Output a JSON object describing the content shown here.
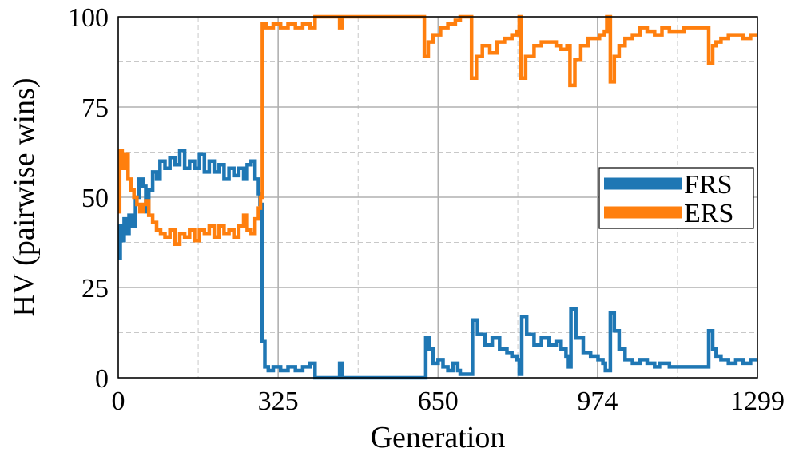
{
  "chart_data": {
    "type": "line",
    "xlabel": "Generation",
    "ylabel": "HV (pairwise wins)",
    "xlim": [
      0,
      1299
    ],
    "ylim": [
      0,
      100
    ],
    "x_ticks": [
      0,
      325,
      650,
      974,
      1299
    ],
    "x_tick_labels": [
      "0",
      "325",
      "650",
      "974",
      "1299"
    ],
    "y_ticks": [
      0,
      25,
      50,
      75,
      100
    ],
    "y_tick_labels": [
      "0",
      "25",
      "50",
      "75",
      "100"
    ],
    "minor_y_ticks": [
      12.5,
      37.5,
      62.5,
      87.5
    ],
    "minor_x_ticks": [
      162.5,
      487.5,
      812,
      1136.5
    ],
    "grid": true,
    "legend": {
      "position": "center-right"
    },
    "series": [
      {
        "name": "FRS",
        "color": "#1f77b4",
        "points": [
          [
            0,
            33
          ],
          [
            4,
            42
          ],
          [
            8,
            38
          ],
          [
            12,
            44
          ],
          [
            16,
            40
          ],
          [
            22,
            45
          ],
          [
            28,
            42
          ],
          [
            35,
            50
          ],
          [
            42,
            55
          ],
          [
            50,
            53
          ],
          [
            56,
            46
          ],
          [
            62,
            52
          ],
          [
            70,
            57
          ],
          [
            78,
            55
          ],
          [
            85,
            60
          ],
          [
            95,
            58
          ],
          [
            105,
            61
          ],
          [
            115,
            59
          ],
          [
            125,
            63
          ],
          [
            135,
            58
          ],
          [
            145,
            60
          ],
          [
            155,
            58
          ],
          [
            165,
            62
          ],
          [
            175,
            57
          ],
          [
            185,
            60
          ],
          [
            195,
            57
          ],
          [
            205,
            59
          ],
          [
            215,
            55
          ],
          [
            225,
            58
          ],
          [
            235,
            56
          ],
          [
            245,
            58
          ],
          [
            255,
            55
          ],
          [
            262,
            59
          ],
          [
            270,
            60
          ],
          [
            278,
            55
          ],
          [
            285,
            51
          ],
          [
            288,
            48
          ],
          [
            292,
            10
          ],
          [
            298,
            3
          ],
          [
            305,
            2
          ],
          [
            315,
            3
          ],
          [
            330,
            2
          ],
          [
            345,
            3
          ],
          [
            360,
            2
          ],
          [
            375,
            3
          ],
          [
            390,
            4
          ],
          [
            400,
            0
          ],
          [
            430,
            0
          ],
          [
            450,
            4
          ],
          [
            455,
            0
          ],
          [
            480,
            0
          ],
          [
            540,
            0
          ],
          [
            560,
            0
          ],
          [
            600,
            0
          ],
          [
            625,
            11
          ],
          [
            632,
            8
          ],
          [
            640,
            4
          ],
          [
            650,
            5
          ],
          [
            660,
            3
          ],
          [
            670,
            2
          ],
          [
            680,
            4
          ],
          [
            690,
            2
          ],
          [
            695,
            1
          ],
          [
            710,
            1
          ],
          [
            720,
            16
          ],
          [
            730,
            12
          ],
          [
            745,
            9
          ],
          [
            760,
            11
          ],
          [
            775,
            8
          ],
          [
            790,
            7
          ],
          [
            800,
            6
          ],
          [
            810,
            5
          ],
          [
            815,
            1
          ],
          [
            820,
            17
          ],
          [
            830,
            12
          ],
          [
            845,
            9
          ],
          [
            860,
            11
          ],
          [
            875,
            9
          ],
          [
            890,
            10
          ],
          [
            900,
            8
          ],
          [
            910,
            6
          ],
          [
            915,
            3
          ],
          [
            920,
            19
          ],
          [
            930,
            11
          ],
          [
            945,
            7
          ],
          [
            960,
            6
          ],
          [
            975,
            5
          ],
          [
            985,
            4
          ],
          [
            990,
            2
          ],
          [
            1000,
            18
          ],
          [
            1008,
            13
          ],
          [
            1018,
            8
          ],
          [
            1030,
            5
          ],
          [
            1045,
            4
          ],
          [
            1060,
            5
          ],
          [
            1075,
            4
          ],
          [
            1090,
            3
          ],
          [
            1100,
            4
          ],
          [
            1120,
            3
          ],
          [
            1150,
            3
          ],
          [
            1180,
            3
          ],
          [
            1195,
            3
          ],
          [
            1200,
            13
          ],
          [
            1208,
            8
          ],
          [
            1215,
            6
          ],
          [
            1225,
            5
          ],
          [
            1240,
            4
          ],
          [
            1255,
            5
          ],
          [
            1270,
            4
          ],
          [
            1285,
            5
          ],
          [
            1299,
            5
          ]
        ]
      },
      {
        "name": "ERS",
        "color": "#ff7f0e",
        "points": [
          [
            0,
            46
          ],
          [
            3,
            63
          ],
          [
            8,
            58
          ],
          [
            14,
            62
          ],
          [
            20,
            55
          ],
          [
            26,
            52
          ],
          [
            32,
            50
          ],
          [
            38,
            48
          ],
          [
            44,
            46
          ],
          [
            50,
            48
          ],
          [
            56,
            49
          ],
          [
            62,
            45
          ],
          [
            70,
            43
          ],
          [
            78,
            41
          ],
          [
            86,
            40
          ],
          [
            95,
            39
          ],
          [
            105,
            41
          ],
          [
            115,
            37
          ],
          [
            125,
            40
          ],
          [
            135,
            39
          ],
          [
            145,
            41
          ],
          [
            155,
            38
          ],
          [
            165,
            41
          ],
          [
            175,
            40
          ],
          [
            185,
            42
          ],
          [
            195,
            39
          ],
          [
            205,
            42
          ],
          [
            215,
            40
          ],
          [
            225,
            41
          ],
          [
            235,
            39
          ],
          [
            245,
            42
          ],
          [
            255,
            45
          ],
          [
            262,
            41
          ],
          [
            270,
            40
          ],
          [
            278,
            44
          ],
          [
            285,
            47
          ],
          [
            289,
            50
          ],
          [
            293,
            98
          ],
          [
            300,
            97
          ],
          [
            315,
            98
          ],
          [
            330,
            97
          ],
          [
            345,
            98
          ],
          [
            360,
            97
          ],
          [
            375,
            98
          ],
          [
            390,
            97
          ],
          [
            400,
            100
          ],
          [
            430,
            100
          ],
          [
            450,
            97
          ],
          [
            455,
            100
          ],
          [
            500,
            100
          ],
          [
            560,
            100
          ],
          [
            600,
            100
          ],
          [
            622,
            89
          ],
          [
            630,
            93
          ],
          [
            640,
            95
          ],
          [
            655,
            97
          ],
          [
            670,
            98
          ],
          [
            685,
            99
          ],
          [
            695,
            100
          ],
          [
            710,
            100
          ],
          [
            718,
            83
          ],
          [
            728,
            89
          ],
          [
            740,
            92
          ],
          [
            755,
            90
          ],
          [
            770,
            93
          ],
          [
            785,
            94
          ],
          [
            800,
            95
          ],
          [
            810,
            96
          ],
          [
            815,
            100
          ],
          [
            818,
            83
          ],
          [
            828,
            89
          ],
          [
            845,
            92
          ],
          [
            860,
            93
          ],
          [
            875,
            93
          ],
          [
            890,
            92
          ],
          [
            900,
            91
          ],
          [
            912,
            92
          ],
          [
            918,
            81
          ],
          [
            928,
            88
          ],
          [
            940,
            92
          ],
          [
            955,
            94
          ],
          [
            968,
            94
          ],
          [
            978,
            95
          ],
          [
            988,
            96
          ],
          [
            993,
            100
          ],
          [
            1000,
            82
          ],
          [
            1008,
            89
          ],
          [
            1018,
            92
          ],
          [
            1030,
            94
          ],
          [
            1045,
            95
          ],
          [
            1060,
            97
          ],
          [
            1075,
            96
          ],
          [
            1090,
            95
          ],
          [
            1105,
            97
          ],
          [
            1120,
            96
          ],
          [
            1150,
            97
          ],
          [
            1180,
            97
          ],
          [
            1195,
            97
          ],
          [
            1200,
            87
          ],
          [
            1208,
            92
          ],
          [
            1215,
            93
          ],
          [
            1225,
            94
          ],
          [
            1240,
            95
          ],
          [
            1255,
            95
          ],
          [
            1270,
            94
          ],
          [
            1285,
            95
          ],
          [
            1299,
            95
          ]
        ]
      }
    ]
  }
}
